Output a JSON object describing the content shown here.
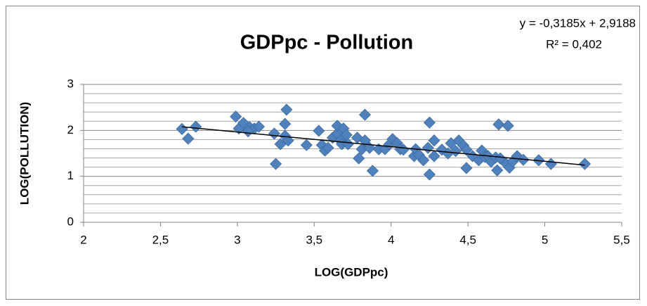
{
  "chart_data": {
    "type": "scatter",
    "title": "GDPpc - Pollution",
    "x_label": "LOG(GDPpc)",
    "y_label": "LOG(POLLUTION)",
    "color": "#4f81bd",
    "grid": true,
    "minor_grid_divisions": 5,
    "xlim": [
      2,
      5.5
    ],
    "xticks": [
      2,
      {
        "value": 2.5,
        "label": "2,5"
      },
      3,
      {
        "value": 3.5,
        "label": "3,5"
      },
      4,
      {
        "value": 4.5,
        "label": "4,5"
      },
      5,
      {
        "value": 5.5,
        "label": "5,5"
      }
    ],
    "ylim": [
      0,
      3
    ],
    "yticks": [
      0,
      1,
      2,
      3
    ],
    "trendline": {
      "slope": -0.3185,
      "intercept": 2.9188,
      "equation": "y = -0,3185x + 2,9188",
      "r_squared": "R² = 0,402"
    },
    "x": [
      2.64,
      2.68,
      2.73,
      2.99,
      3.01,
      3.04,
      3.08,
      3.11,
      3.14,
      3.07,
      3.24,
      3.25,
      3.28,
      3.31,
      3.32,
      3.31,
      3.33,
      3.45,
      3.53,
      3.55,
      3.57,
      3.59,
      3.62,
      3.65,
      3.65,
      3.69,
      3.67,
      3.71,
      3.68,
      3.72,
      3.78,
      3.79,
      3.81,
      3.83,
      3.83,
      3.86,
      3.88,
      3.92,
      3.96,
      3.99,
      4.01,
      4.04,
      4.06,
      4.08,
      4.15,
      4.16,
      4.18,
      4.21,
      4.24,
      4.25,
      4.25,
      4.28,
      4.28,
      4.33,
      4.37,
      4.39,
      4.42,
      4.44,
      4.47,
      4.49,
      4.49,
      4.53,
      4.57,
      4.59,
      4.61,
      4.63,
      4.65,
      4.68,
      4.69,
      4.7,
      4.71,
      4.75,
      4.76,
      4.77,
      4.79,
      4.82,
      4.86,
      4.96,
      5.04,
      5.26
    ],
    "values": [
      2.03,
      1.82,
      2.08,
      2.3,
      2.04,
      2.16,
      2.07,
      2.04,
      2.08,
      1.98,
      1.93,
      1.27,
      1.7,
      1.88,
      2.45,
      2.14,
      1.78,
      1.68,
      1.99,
      1.68,
      1.56,
      1.62,
      1.84,
      1.93,
      2.1,
      2.04,
      1.78,
      1.9,
      1.7,
      1.7,
      1.84,
      1.39,
      1.59,
      2.34,
      1.78,
      1.62,
      1.12,
      1.59,
      1.59,
      1.7,
      1.81,
      1.72,
      1.59,
      1.58,
      1.44,
      1.59,
      1.47,
      1.35,
      1.62,
      1.04,
      2.17,
      1.44,
      1.78,
      1.58,
      1.5,
      1.72,
      1.55,
      1.78,
      1.67,
      1.18,
      1.58,
      1.44,
      1.35,
      1.56,
      1.42,
      1.44,
      1.32,
      1.41,
      1.13,
      2.13,
      1.39,
      1.27,
      2.1,
      1.19,
      1.32,
      1.44,
      1.36,
      1.35,
      1.27,
      1.27
    ]
  }
}
